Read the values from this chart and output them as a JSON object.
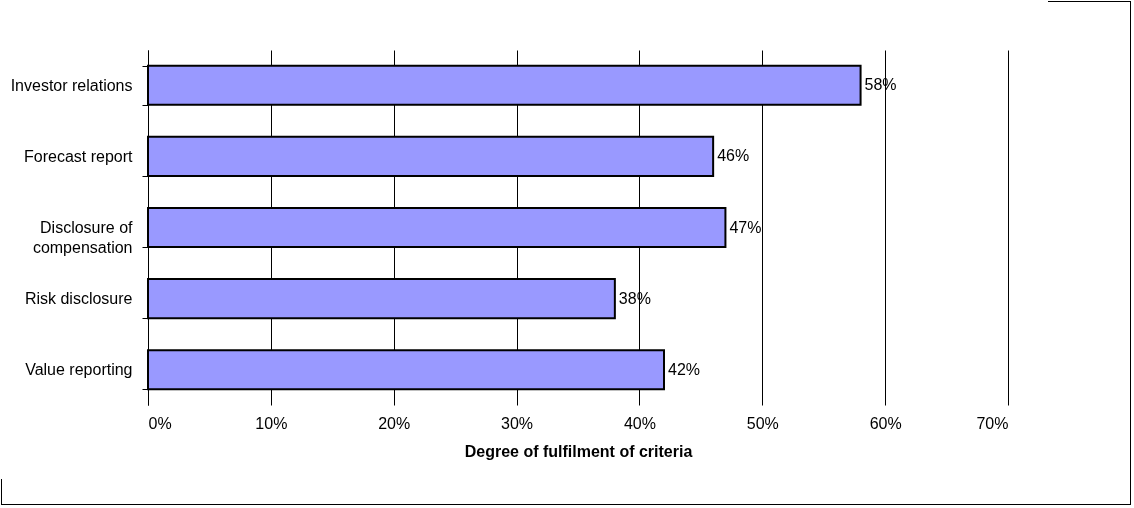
{
  "chart_data": {
    "type": "bar",
    "orientation": "horizontal",
    "xlabel": "Degree of fulfilment of criteria",
    "categories": [
      "Investor relations",
      "Forecast report",
      "Disclosure of compensation",
      "Risk disclosure",
      "Value reporting"
    ],
    "values": [
      58,
      46,
      47,
      38,
      42
    ],
    "value_labels": [
      "58%",
      "46%",
      "47%",
      "38%",
      "42%"
    ],
    "color": "#9999ff",
    "xlim": [
      0,
      70
    ],
    "xticks": [
      {
        "value": 0,
        "label": "0%"
      },
      {
        "value": 10,
        "label": "10%"
      },
      {
        "value": 20,
        "label": "20%"
      },
      {
        "value": 30,
        "label": "30%"
      },
      {
        "value": 40,
        "label": "40%"
      },
      {
        "value": 50,
        "label": "50%"
      },
      {
        "value": 60,
        "label": "60%"
      },
      {
        "value": 70,
        "label": "70%"
      }
    ],
    "grid": "x"
  }
}
